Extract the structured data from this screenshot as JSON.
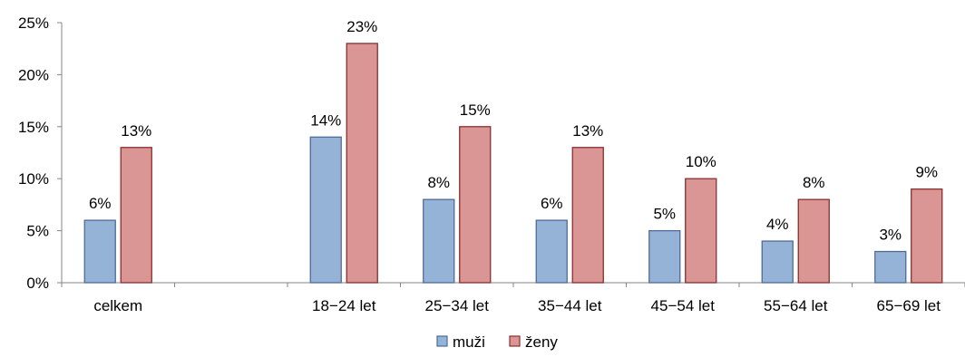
{
  "chart_data": {
    "type": "bar",
    "title": "",
    "xlabel": "",
    "ylabel": "",
    "categories": [
      "celkem",
      "",
      "18−24 let",
      "25−34 let",
      "35−44 let",
      "45−54 let",
      "55−64 let",
      "65−69 let"
    ],
    "series": [
      {
        "name": "muži",
        "values": [
          6,
          null,
          14,
          8,
          6,
          5,
          4,
          3
        ],
        "labels": [
          "6%",
          "",
          "14%",
          "8%",
          "6%",
          "5%",
          "4%",
          "3%"
        ],
        "color": "#95b3d7",
        "stroke": "#4f6b96"
      },
      {
        "name": "ženy",
        "values": [
          13,
          null,
          23,
          15,
          13,
          10,
          8,
          9
        ],
        "labels": [
          "13%",
          "",
          "23%",
          "15%",
          "13%",
          "10%",
          "8%",
          "9%"
        ],
        "color": "#d99694",
        "stroke": "#8b2e2e"
      }
    ],
    "ylim": [
      0,
      25
    ],
    "yticks": [
      "0%",
      "5%",
      "10%",
      "15%",
      "20%",
      "25%"
    ],
    "grid": false,
    "legend_position": "bottom"
  }
}
